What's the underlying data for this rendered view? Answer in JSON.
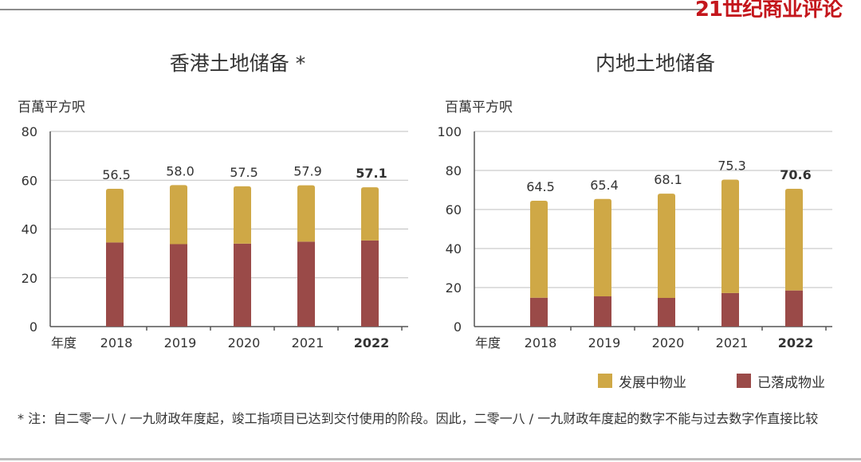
{
  "brand": "21世纪商业评论",
  "colors": {
    "developing": "#cfa846",
    "completed": "#9a4a48"
  },
  "legend": {
    "developing": "发展中物业",
    "completed": "已落成物业"
  },
  "footnote": "* 注：自二零一八 / 一九财政年度起，竣工指项目已达到交付使用的阶段。因此，二零一八 / 一九财政年度起的数字不能与过去数字作直接比较",
  "chart_data": [
    {
      "type": "bar",
      "stacked": true,
      "title": "香港土地储备 *",
      "ylabel": "百萬平方呎",
      "xlabel": "年度",
      "ylim": [
        0,
        80
      ],
      "yticks": [
        0,
        20,
        40,
        60,
        80
      ],
      "categories": [
        "2018",
        "2019",
        "2020",
        "2021",
        "2022"
      ],
      "highlight": "2022",
      "series": [
        {
          "name": "已落成物业",
          "values": [
            34.5,
            33.8,
            34.0,
            34.8,
            35.3
          ]
        },
        {
          "name": "发展中物业",
          "values": [
            22.0,
            24.2,
            23.5,
            23.1,
            21.8
          ]
        }
      ],
      "totals": [
        "56.5",
        "58.0",
        "57.5",
        "57.9",
        "57.1"
      ],
      "grid": true
    },
    {
      "type": "bar",
      "stacked": true,
      "title": "内地土地储备",
      "ylabel": "百萬平方呎",
      "xlabel": "年度",
      "ylim": [
        0,
        100
      ],
      "yticks": [
        0,
        20,
        40,
        60,
        80,
        100
      ],
      "categories": [
        "2018",
        "2019",
        "2020",
        "2021",
        "2022"
      ],
      "highlight": "2022",
      "series": [
        {
          "name": "已落成物业",
          "values": [
            14.8,
            15.5,
            14.7,
            17.2,
            18.5
          ]
        },
        {
          "name": "发展中物业",
          "values": [
            49.7,
            49.9,
            53.4,
            58.1,
            52.1
          ]
        }
      ],
      "totals": [
        "64.5",
        "65.4",
        "68.1",
        "75.3",
        "70.6"
      ],
      "grid": true
    }
  ]
}
